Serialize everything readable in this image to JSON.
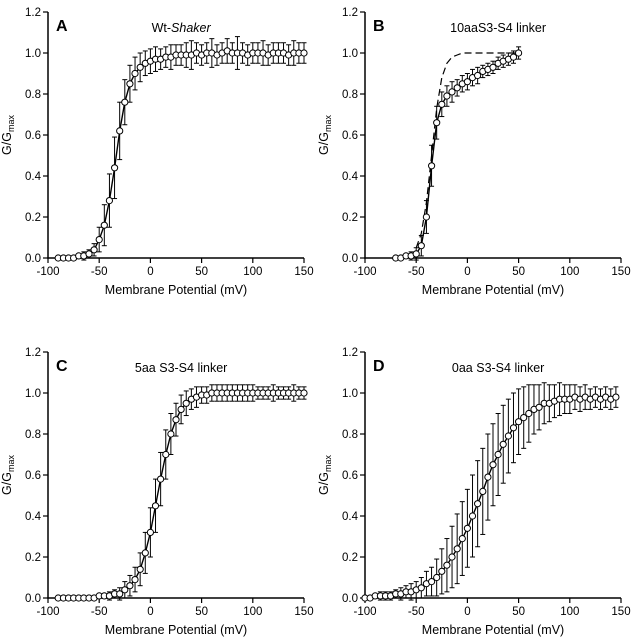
{
  "figure": {
    "background": "#ffffff",
    "ink": "#000000",
    "xlabel": "Membrane Potential (mV)",
    "ylabel_main": "G/G",
    "ylabel_sub": "max"
  },
  "chart_data": [
    {
      "type": "scatter",
      "panel_label": "A",
      "title_prefix": "Wt-",
      "title_italic": "Shaker",
      "xlabel": "Membrane Potential (mV)",
      "ylabel_main": "G/G",
      "ylabel_sub": "max",
      "xlim": [
        -100,
        150
      ],
      "ylim": [
        0,
        1.2
      ],
      "xticks": [
        -100,
        -50,
        0,
        50,
        100,
        150
      ],
      "xticklabels": [
        "-100",
        "-50",
        "0",
        "50",
        "100",
        "150"
      ],
      "yticks": [
        0,
        0.2,
        0.4,
        0.6,
        0.8,
        1.0,
        1.2
      ],
      "yticklabels": [
        "0.0",
        "0.2",
        "0.4",
        "0.6",
        "0.8",
        "1.0",
        "1.2"
      ],
      "points": [
        [
          -90,
          0,
          0.01
        ],
        [
          -85,
          0,
          0.01
        ],
        [
          -80,
          0,
          0.01
        ],
        [
          -75,
          0,
          0.01
        ],
        [
          -70,
          0.01,
          0.01
        ],
        [
          -65,
          0.01,
          0.02
        ],
        [
          -60,
          0.02,
          0.02
        ],
        [
          -55,
          0.04,
          0.03
        ],
        [
          -50,
          0.09,
          0.06
        ],
        [
          -45,
          0.16,
          0.1
        ],
        [
          -40,
          0.28,
          0.13
        ],
        [
          -35,
          0.44,
          0.15
        ],
        [
          -30,
          0.62,
          0.14
        ],
        [
          -25,
          0.76,
          0.11
        ],
        [
          -20,
          0.85,
          0.09
        ],
        [
          -15,
          0.9,
          0.08
        ],
        [
          -10,
          0.93,
          0.07
        ],
        [
          -5,
          0.95,
          0.06
        ],
        [
          0,
          0.96,
          0.06
        ],
        [
          5,
          0.97,
          0.06
        ],
        [
          10,
          0.97,
          0.05
        ],
        [
          15,
          0.98,
          0.05
        ],
        [
          20,
          0.98,
          0.06
        ],
        [
          25,
          0.99,
          0.05
        ],
        [
          30,
          0.99,
          0.05
        ],
        [
          35,
          0.99,
          0.06
        ],
        [
          40,
          0.99,
          0.07
        ],
        [
          45,
          1,
          0.05
        ],
        [
          50,
          0.99,
          0.05
        ],
        [
          55,
          1,
          0.05
        ],
        [
          60,
          1,
          0.07
        ],
        [
          65,
          0.99,
          0.05
        ],
        [
          70,
          1,
          0.05
        ],
        [
          75,
          1.01,
          0.06
        ],
        [
          80,
          1,
          0.05
        ],
        [
          85,
          1,
          0.08
        ],
        [
          90,
          1,
          0.05
        ],
        [
          95,
          0.99,
          0.05
        ],
        [
          100,
          1,
          0.05
        ],
        [
          105,
          1,
          0.05
        ],
        [
          110,
          1,
          0.06
        ],
        [
          115,
          0.99,
          0.05
        ],
        [
          120,
          1,
          0.05
        ],
        [
          125,
          1,
          0.05
        ],
        [
          130,
          1,
          0.05
        ],
        [
          135,
          0.99,
          0.05
        ],
        [
          140,
          1,
          0.06
        ],
        [
          145,
          1,
          0.05
        ],
        [
          150,
          1,
          0.05
        ]
      ]
    },
    {
      "type": "scatter",
      "panel_label": "B",
      "title": "10aaS3-S4 linker",
      "xlabel": "Membrane Potential (mV)",
      "ylabel_main": "G/G",
      "ylabel_sub": "max",
      "xlim": [
        -100,
        150
      ],
      "ylim": [
        0,
        1.2
      ],
      "xticks": [
        -100,
        -50,
        0,
        50,
        100,
        150
      ],
      "xticklabels": [
        "-100",
        "-50",
        "0",
        "50",
        "100",
        "150"
      ],
      "yticks": [
        0,
        0.2,
        0.4,
        0.6,
        0.8,
        1.0,
        1.2
      ],
      "yticklabels": [
        "0.0",
        "0.2",
        "0.4",
        "0.6",
        "0.8",
        "1.0",
        "1.2"
      ],
      "points": [
        [
          -70,
          0,
          0.01
        ],
        [
          -65,
          0,
          0.01
        ],
        [
          -60,
          0.01,
          0.01
        ],
        [
          -55,
          0.01,
          0.02
        ],
        [
          -50,
          0.02,
          0.03
        ],
        [
          -45,
          0.06,
          0.05
        ],
        [
          -40,
          0.2,
          0.08
        ],
        [
          -35,
          0.45,
          0.1
        ],
        [
          -30,
          0.66,
          0.08
        ],
        [
          -25,
          0.75,
          0.06
        ],
        [
          -20,
          0.79,
          0.05
        ],
        [
          -15,
          0.81,
          0.05
        ],
        [
          -10,
          0.83,
          0.04
        ],
        [
          -5,
          0.85,
          0.04
        ],
        [
          0,
          0.86,
          0.04
        ],
        [
          5,
          0.88,
          0.04
        ],
        [
          10,
          0.89,
          0.04
        ],
        [
          15,
          0.91,
          0.03
        ],
        [
          20,
          0.92,
          0.03
        ],
        [
          25,
          0.93,
          0.03
        ],
        [
          30,
          0.95,
          0.03
        ],
        [
          35,
          0.96,
          0.03
        ],
        [
          40,
          0.97,
          0.03
        ],
        [
          45,
          0.98,
          0.03
        ],
        [
          50,
          1,
          0.03
        ]
      ],
      "dashed": [
        [
          -50,
          0.05
        ],
        [
          -45,
          0.12
        ],
        [
          -40,
          0.27
        ],
        [
          -35,
          0.5
        ],
        [
          -30,
          0.73
        ],
        [
          -25,
          0.88
        ],
        [
          -20,
          0.95
        ],
        [
          -15,
          0.98
        ],
        [
          -10,
          0.99
        ],
        [
          -5,
          1
        ],
        [
          0,
          1
        ],
        [
          10,
          1
        ],
        [
          20,
          1
        ],
        [
          30,
          1
        ],
        [
          40,
          1
        ],
        [
          48,
          1
        ]
      ]
    },
    {
      "type": "scatter",
      "panel_label": "C",
      "title": "5aa S3-S4 linker",
      "xlabel": "Membrane Potential (mV)",
      "ylabel_main": "G/G",
      "ylabel_sub": "max",
      "xlim": [
        -100,
        150
      ],
      "ylim": [
        0,
        1.2
      ],
      "xticks": [
        -100,
        -50,
        0,
        50,
        100,
        150
      ],
      "xticklabels": [
        "-100",
        "-50",
        "0",
        "50",
        "100",
        "150"
      ],
      "yticks": [
        0,
        0.2,
        0.4,
        0.6,
        0.8,
        1.0,
        1.2
      ],
      "yticklabels": [
        "0.0",
        "0.2",
        "0.4",
        "0.6",
        "0.8",
        "1.0",
        "1.2"
      ],
      "points": [
        [
          -90,
          0,
          0.01
        ],
        [
          -85,
          0,
          0.01
        ],
        [
          -80,
          0,
          0.01
        ],
        [
          -75,
          0,
          0.01
        ],
        [
          -70,
          0,
          0.01
        ],
        [
          -65,
          0,
          0.01
        ],
        [
          -60,
          0,
          0.01
        ],
        [
          -55,
          0,
          0.01
        ],
        [
          -50,
          0.01,
          0.01
        ],
        [
          -45,
          0.01,
          0.01
        ],
        [
          -40,
          0.01,
          0.02
        ],
        [
          -35,
          0.02,
          0.02
        ],
        [
          -30,
          0.02,
          0.03
        ],
        [
          -25,
          0.04,
          0.04
        ],
        [
          -20,
          0.06,
          0.05
        ],
        [
          -15,
          0.09,
          0.06
        ],
        [
          -10,
          0.14,
          0.08
        ],
        [
          -5,
          0.22,
          0.1
        ],
        [
          0,
          0.32,
          0.12
        ],
        [
          5,
          0.45,
          0.13
        ],
        [
          10,
          0.58,
          0.13
        ],
        [
          15,
          0.7,
          0.12
        ],
        [
          20,
          0.8,
          0.1
        ],
        [
          25,
          0.87,
          0.08
        ],
        [
          30,
          0.92,
          0.07
        ],
        [
          35,
          0.95,
          0.06
        ],
        [
          40,
          0.97,
          0.05
        ],
        [
          45,
          0.98,
          0.05
        ],
        [
          50,
          0.99,
          0.04
        ],
        [
          55,
          0.99,
          0.04
        ],
        [
          60,
          1,
          0.04
        ],
        [
          65,
          1,
          0.04
        ],
        [
          70,
          1,
          0.04
        ],
        [
          75,
          1,
          0.04
        ],
        [
          80,
          1,
          0.04
        ],
        [
          85,
          1,
          0.04
        ],
        [
          90,
          1,
          0.04
        ],
        [
          95,
          1,
          0.04
        ],
        [
          100,
          1,
          0.04
        ],
        [
          105,
          1,
          0.03
        ],
        [
          110,
          1,
          0.03
        ],
        [
          115,
          1,
          0.03
        ],
        [
          120,
          1,
          0.04
        ],
        [
          125,
          1,
          0.03
        ],
        [
          130,
          1,
          0.03
        ],
        [
          135,
          1,
          0.03
        ],
        [
          140,
          1,
          0.04
        ],
        [
          145,
          1,
          0.03
        ],
        [
          150,
          1,
          0.03
        ]
      ]
    },
    {
      "type": "scatter",
      "panel_label": "D",
      "title": "0aa S3-S4 linker",
      "xlabel": "Membrane Potential (mV)",
      "ylabel_main": "G/G",
      "ylabel_sub": "max",
      "xlim": [
        -100,
        150
      ],
      "ylim": [
        0,
        1.2
      ],
      "xticks": [
        -100,
        -50,
        0,
        50,
        100,
        150
      ],
      "xticklabels": [
        "-100",
        "-50",
        "0",
        "50",
        "100",
        "150"
      ],
      "yticks": [
        0,
        0.2,
        0.4,
        0.6,
        0.8,
        1.0,
        1.2
      ],
      "yticklabels": [
        "0.0",
        "0.2",
        "0.4",
        "0.6",
        "0.8",
        "1.0",
        "1.2"
      ],
      "points": [
        [
          -100,
          0,
          0.01
        ],
        [
          -95,
          0,
          0.01
        ],
        [
          -90,
          0.01,
          0.01
        ],
        [
          -85,
          0.01,
          0.02
        ],
        [
          -80,
          0.01,
          0.02
        ],
        [
          -75,
          0.01,
          0.02
        ],
        [
          -70,
          0.02,
          0.02
        ],
        [
          -65,
          0.02,
          0.03
        ],
        [
          -60,
          0.03,
          0.03
        ],
        [
          -55,
          0.03,
          0.04
        ],
        [
          -50,
          0.04,
          0.04
        ],
        [
          -45,
          0.05,
          0.05
        ],
        [
          -40,
          0.07,
          0.06
        ],
        [
          -35,
          0.08,
          0.07
        ],
        [
          -30,
          0.1,
          0.09
        ],
        [
          -25,
          0.13,
          0.11
        ],
        [
          -20,
          0.16,
          0.13
        ],
        [
          -15,
          0.2,
          0.15
        ],
        [
          -10,
          0.24,
          0.17
        ],
        [
          -5,
          0.29,
          0.18
        ],
        [
          0,
          0.34,
          0.19
        ],
        [
          5,
          0.4,
          0.2
        ],
        [
          10,
          0.46,
          0.21
        ],
        [
          15,
          0.52,
          0.21
        ],
        [
          20,
          0.59,
          0.21
        ],
        [
          25,
          0.65,
          0.2
        ],
        [
          30,
          0.7,
          0.2
        ],
        [
          35,
          0.75,
          0.19
        ],
        [
          40,
          0.79,
          0.18
        ],
        [
          45,
          0.83,
          0.17
        ],
        [
          50,
          0.86,
          0.16
        ],
        [
          55,
          0.88,
          0.15
        ],
        [
          60,
          0.9,
          0.14
        ],
        [
          65,
          0.92,
          0.12
        ],
        [
          70,
          0.93,
          0.11
        ],
        [
          75,
          0.95,
          0.1
        ],
        [
          80,
          0.95,
          0.09
        ],
        [
          85,
          0.96,
          0.08
        ],
        [
          90,
          0.97,
          0.08
        ],
        [
          95,
          0.97,
          0.07
        ],
        [
          100,
          0.97,
          0.07
        ],
        [
          105,
          0.98,
          0.06
        ],
        [
          110,
          0.97,
          0.06
        ],
        [
          115,
          0.98,
          0.06
        ],
        [
          120,
          0.97,
          0.05
        ],
        [
          125,
          0.98,
          0.05
        ],
        [
          130,
          0.97,
          0.05
        ],
        [
          135,
          0.98,
          0.05
        ],
        [
          140,
          0.97,
          0.05
        ],
        [
          145,
          0.98,
          0.05
        ]
      ]
    }
  ]
}
